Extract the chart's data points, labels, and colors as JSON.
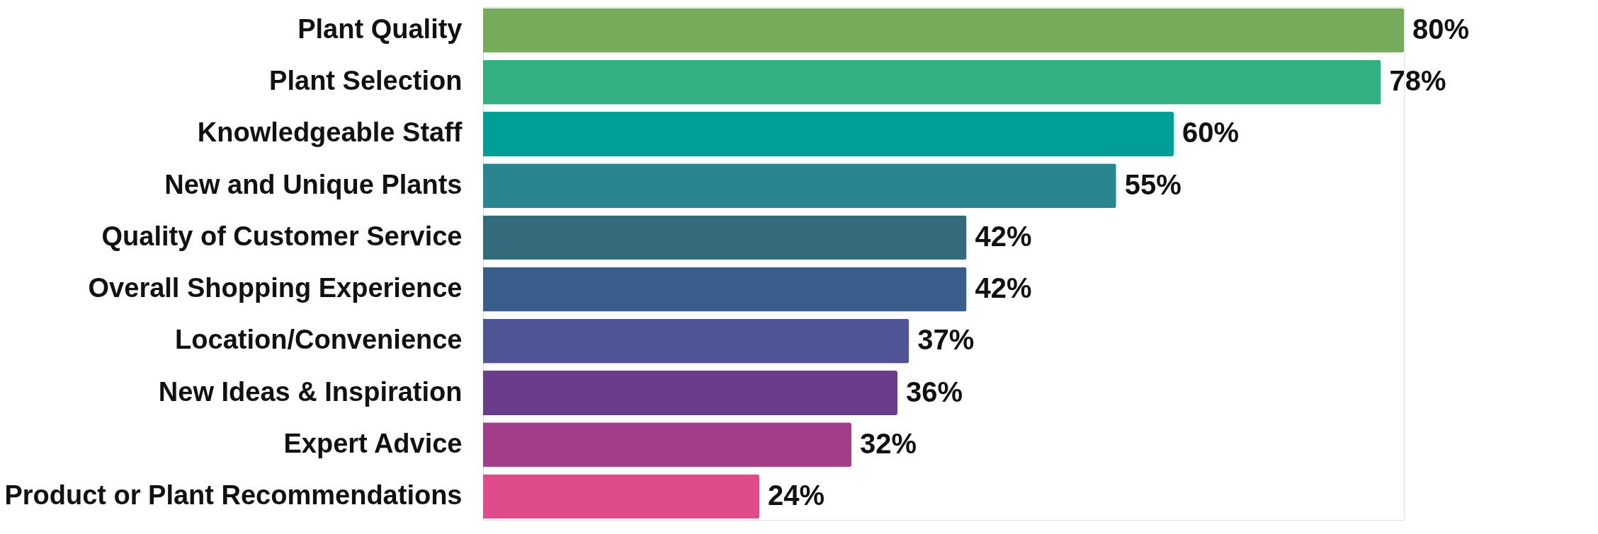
{
  "chart_data": {
    "type": "bar",
    "orientation": "horizontal",
    "value_labels": [
      "80%",
      "78%",
      "60%",
      "55%",
      "42%",
      "42%",
      "37%",
      "36%",
      "32%",
      "24%"
    ],
    "legend": false,
    "grid": false,
    "categories": [
      "Plant Quality",
      "Plant Selection",
      "Knowledgeable Staff",
      "New and Unique Plants",
      "Quality of Customer Service",
      "Overall Shopping Experience",
      "Location/Convenience",
      "New Ideas & Inspiration",
      "Expert Advice",
      "Product or Plant Recommendations"
    ],
    "values": [
      80,
      78,
      60,
      55,
      42,
      42,
      37,
      36,
      32,
      24
    ],
    "colors": [
      "#76ab5b",
      "#33b07f",
      "#009e96",
      "#2a8590",
      "#356a7d",
      "#3a5e8b",
      "#4f5494",
      "#6a3c8a",
      "#a23d8a",
      "#e04c8b"
    ]
  }
}
